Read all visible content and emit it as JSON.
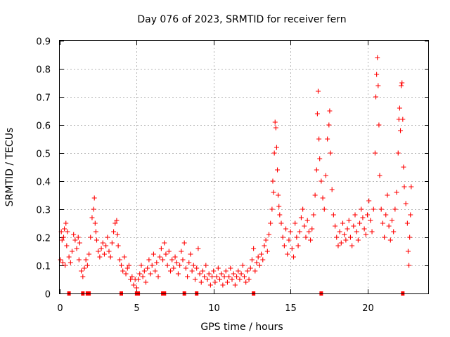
{
  "chart_data": {
    "type": "scatter",
    "title": "Day 076 of 2023, SRMTID for receiver fern",
    "xlabel": "GPS time / hours",
    "ylabel": "SRMTID / TECUs",
    "xlim": [
      0,
      24
    ],
    "ylim": [
      0,
      0.9
    ],
    "xticks": [
      0,
      5,
      10,
      15,
      20
    ],
    "xtick_labels": [
      "0",
      "5",
      "10",
      "15",
      "20"
    ],
    "yticks": [
      0,
      0.1,
      0.2,
      0.3,
      0.4,
      0.5,
      0.6,
      0.7,
      0.8,
      0.9
    ],
    "ytick_labels": [
      "0",
      "0.1",
      "0.2",
      "0.3",
      "0.4",
      "0.5",
      "0.6",
      "0.7",
      "0.8",
      "0.9"
    ],
    "grid": true,
    "marker": "+",
    "series": [
      {
        "name": "SRMTID",
        "color": "#ff0000",
        "points": [
          [
            0.05,
            0.12
          ],
          [
            0.1,
            0.22
          ],
          [
            0.15,
            0.19
          ],
          [
            0.2,
            0.11
          ],
          [
            0.25,
            0.2
          ],
          [
            0.3,
            0.23
          ],
          [
            0.35,
            0.1
          ],
          [
            0.4,
            0.25
          ],
          [
            0.45,
            0.17
          ],
          [
            0.5,
            0.22
          ],
          [
            0.6,
            0.13
          ],
          [
            0.7,
            0.11
          ],
          [
            0.8,
            0.15
          ],
          [
            0.9,
            0.21
          ],
          [
            1.0,
            0.19
          ],
          [
            1.1,
            0.16
          ],
          [
            1.2,
            0.2
          ],
          [
            1.25,
            0.12
          ],
          [
            1.3,
            0.18
          ],
          [
            1.4,
            0.08
          ],
          [
            1.5,
            0.06
          ],
          [
            1.6,
            0.09
          ],
          [
            1.7,
            0.12
          ],
          [
            1.8,
            0.1
          ],
          [
            1.9,
            0.14
          ],
          [
            2.0,
            0.2
          ],
          [
            2.1,
            0.27
          ],
          [
            2.2,
            0.3
          ],
          [
            2.25,
            0.34
          ],
          [
            2.3,
            0.25
          ],
          [
            2.35,
            0.22
          ],
          [
            2.4,
            0.19
          ],
          [
            2.5,
            0.15
          ],
          [
            2.6,
            0.13
          ],
          [
            2.7,
            0.16
          ],
          [
            2.8,
            0.18
          ],
          [
            2.9,
            0.14
          ],
          [
            3.0,
            0.17
          ],
          [
            3.1,
            0.2
          ],
          [
            3.2,
            0.15
          ],
          [
            3.3,
            0.13
          ],
          [
            3.4,
            0.18
          ],
          [
            3.5,
            0.22
          ],
          [
            3.6,
            0.25
          ],
          [
            3.7,
            0.26
          ],
          [
            3.75,
            0.21
          ],
          [
            3.8,
            0.17
          ],
          [
            3.9,
            0.12
          ],
          [
            4.0,
            0.1
          ],
          [
            4.1,
            0.08
          ],
          [
            4.2,
            0.13
          ],
          [
            4.3,
            0.07
          ],
          [
            4.4,
            0.09
          ],
          [
            4.5,
            0.1
          ],
          [
            4.6,
            0.05
          ],
          [
            4.7,
            0.06
          ],
          [
            4.8,
            0.03
          ],
          [
            4.9,
            0.05
          ],
          [
            5.0,
            0.02
          ],
          [
            5.1,
            0.05
          ],
          [
            5.2,
            0.07
          ],
          [
            5.3,
            0.1
          ],
          [
            5.4,
            0.06
          ],
          [
            5.5,
            0.08
          ],
          [
            5.6,
            0.04
          ],
          [
            5.7,
            0.09
          ],
          [
            5.8,
            0.12
          ],
          [
            5.9,
            0.07
          ],
          [
            6.0,
            0.1
          ],
          [
            6.1,
            0.14
          ],
          [
            6.2,
            0.08
          ],
          [
            6.3,
            0.11
          ],
          [
            6.4,
            0.06
          ],
          [
            6.5,
            0.13
          ],
          [
            6.6,
            0.16
          ],
          [
            6.7,
            0.12
          ],
          [
            6.8,
            0.18
          ],
          [
            6.9,
            0.14
          ],
          [
            7.0,
            0.1
          ],
          [
            7.1,
            0.15
          ],
          [
            7.2,
            0.08
          ],
          [
            7.3,
            0.12
          ],
          [
            7.4,
            0.09
          ],
          [
            7.5,
            0.13
          ],
          [
            7.6,
            0.11
          ],
          [
            7.7,
            0.07
          ],
          [
            7.8,
            0.1
          ],
          [
            7.9,
            0.15
          ],
          [
            8.0,
            0.12
          ],
          [
            8.1,
            0.18
          ],
          [
            8.2,
            0.09
          ],
          [
            8.3,
            0.06
          ],
          [
            8.4,
            0.11
          ],
          [
            8.5,
            0.14
          ],
          [
            8.6,
            0.08
          ],
          [
            8.7,
            0.1
          ],
          [
            8.8,
            0.05
          ],
          [
            8.9,
            0.09
          ],
          [
            9.0,
            0.16
          ],
          [
            9.1,
            0.07
          ],
          [
            9.2,
            0.04
          ],
          [
            9.3,
            0.08
          ],
          [
            9.4,
            0.06
          ],
          [
            9.5,
            0.1
          ],
          [
            9.6,
            0.05
          ],
          [
            9.7,
            0.07
          ],
          [
            9.8,
            0.03
          ],
          [
            9.9,
            0.06
          ],
          [
            10.0,
            0.08
          ],
          [
            10.1,
            0.04
          ],
          [
            10.2,
            0.06
          ],
          [
            10.3,
            0.09
          ],
          [
            10.4,
            0.05
          ],
          [
            10.5,
            0.07
          ],
          [
            10.6,
            0.03
          ],
          [
            10.7,
            0.06
          ],
          [
            10.8,
            0.08
          ],
          [
            10.9,
            0.04
          ],
          [
            11.0,
            0.06
          ],
          [
            11.1,
            0.09
          ],
          [
            11.2,
            0.05
          ],
          [
            11.3,
            0.07
          ],
          [
            11.4,
            0.03
          ],
          [
            11.5,
            0.06
          ],
          [
            11.6,
            0.08
          ],
          [
            11.7,
            0.05
          ],
          [
            11.8,
            0.07
          ],
          [
            11.9,
            0.1
          ],
          [
            12.0,
            0.06
          ],
          [
            12.1,
            0.04
          ],
          [
            12.2,
            0.08
          ],
          [
            12.3,
            0.05
          ],
          [
            12.4,
            0.09
          ],
          [
            12.5,
            0.12
          ],
          [
            12.6,
            0.16
          ],
          [
            12.7,
            0.08
          ],
          [
            12.8,
            0.11
          ],
          [
            12.9,
            0.13
          ],
          [
            13.0,
            0.1
          ],
          [
            13.1,
            0.14
          ],
          [
            13.2,
            0.12
          ],
          [
            13.3,
            0.17
          ],
          [
            13.4,
            0.19
          ],
          [
            13.5,
            0.15
          ],
          [
            13.6,
            0.21
          ],
          [
            13.7,
            0.25
          ],
          [
            13.8,
            0.3
          ],
          [
            13.85,
            0.4
          ],
          [
            13.9,
            0.36
          ],
          [
            13.95,
            0.5
          ],
          [
            14.0,
            0.61
          ],
          [
            14.05,
            0.59
          ],
          [
            14.1,
            0.52
          ],
          [
            14.15,
            0.44
          ],
          [
            14.2,
            0.35
          ],
          [
            14.25,
            0.31
          ],
          [
            14.3,
            0.28
          ],
          [
            14.4,
            0.25
          ],
          [
            14.5,
            0.2
          ],
          [
            14.6,
            0.17
          ],
          [
            14.7,
            0.23
          ],
          [
            14.8,
            0.14
          ],
          [
            14.9,
            0.19
          ],
          [
            15.0,
            0.22
          ],
          [
            15.1,
            0.16
          ],
          [
            15.2,
            0.13
          ],
          [
            15.3,
            0.25
          ],
          [
            15.4,
            0.2
          ],
          [
            15.5,
            0.17
          ],
          [
            15.6,
            0.22
          ],
          [
            15.7,
            0.27
          ],
          [
            15.8,
            0.3
          ],
          [
            15.9,
            0.24
          ],
          [
            16.0,
            0.2
          ],
          [
            16.1,
            0.26
          ],
          [
            16.2,
            0.22
          ],
          [
            16.3,
            0.19
          ],
          [
            16.4,
            0.23
          ],
          [
            16.5,
            0.28
          ],
          [
            16.6,
            0.35
          ],
          [
            16.7,
            0.44
          ],
          [
            16.75,
            0.64
          ],
          [
            16.8,
            0.72
          ],
          [
            16.85,
            0.55
          ],
          [
            16.9,
            0.48
          ],
          [
            17.0,
            0.4
          ],
          [
            17.1,
            0.34
          ],
          [
            17.2,
            0.3
          ],
          [
            17.3,
            0.42
          ],
          [
            17.4,
            0.55
          ],
          [
            17.5,
            0.6
          ],
          [
            17.55,
            0.65
          ],
          [
            17.6,
            0.5
          ],
          [
            17.7,
            0.37
          ],
          [
            17.8,
            0.28
          ],
          [
            17.9,
            0.24
          ],
          [
            18.0,
            0.2
          ],
          [
            18.1,
            0.17
          ],
          [
            18.2,
            0.22
          ],
          [
            18.3,
            0.18
          ],
          [
            18.4,
            0.25
          ],
          [
            18.5,
            0.21
          ],
          [
            18.6,
            0.19
          ],
          [
            18.7,
            0.23
          ],
          [
            18.8,
            0.26
          ],
          [
            18.9,
            0.2
          ],
          [
            19.0,
            0.17
          ],
          [
            19.1,
            0.24
          ],
          [
            19.2,
            0.28
          ],
          [
            19.3,
            0.22
          ],
          [
            19.4,
            0.19
          ],
          [
            19.5,
            0.25
          ],
          [
            19.6,
            0.3
          ],
          [
            19.7,
            0.27
          ],
          [
            19.8,
            0.23
          ],
          [
            19.9,
            0.21
          ],
          [
            20.0,
            0.28
          ],
          [
            20.1,
            0.33
          ],
          [
            20.2,
            0.26
          ],
          [
            20.3,
            0.22
          ],
          [
            20.4,
            0.3
          ],
          [
            20.5,
            0.5
          ],
          [
            20.55,
            0.7
          ],
          [
            20.6,
            0.78
          ],
          [
            20.65,
            0.84
          ],
          [
            20.7,
            0.74
          ],
          [
            20.75,
            0.6
          ],
          [
            20.8,
            0.42
          ],
          [
            20.9,
            0.3
          ],
          [
            21.0,
            0.25
          ],
          [
            21.1,
            0.2
          ],
          [
            21.2,
            0.28
          ],
          [
            21.3,
            0.35
          ],
          [
            21.4,
            0.24
          ],
          [
            21.5,
            0.19
          ],
          [
            21.6,
            0.26
          ],
          [
            21.7,
            0.22
          ],
          [
            21.8,
            0.3
          ],
          [
            21.9,
            0.36
          ],
          [
            22.0,
            0.5
          ],
          [
            22.05,
            0.62
          ],
          [
            22.1,
            0.66
          ],
          [
            22.15,
            0.58
          ],
          [
            22.2,
            0.74
          ],
          [
            22.25,
            0.75
          ],
          [
            22.3,
            0.62
          ],
          [
            22.35,
            0.45
          ],
          [
            22.4,
            0.38
          ],
          [
            22.5,
            0.32
          ],
          [
            22.6,
            0.25
          ],
          [
            22.65,
            0.15
          ],
          [
            22.7,
            0.1
          ],
          [
            22.75,
            0.2
          ],
          [
            22.8,
            0.28
          ],
          [
            22.85,
            0.38
          ]
        ]
      }
    ],
    "gaps_near_zero": [
      0.6,
      1.5,
      1.8,
      1.9,
      4.0,
      5.0,
      5.1,
      6.7,
      6.8,
      8.1,
      8.9,
      12.6,
      17.0,
      22.3
    ]
  }
}
